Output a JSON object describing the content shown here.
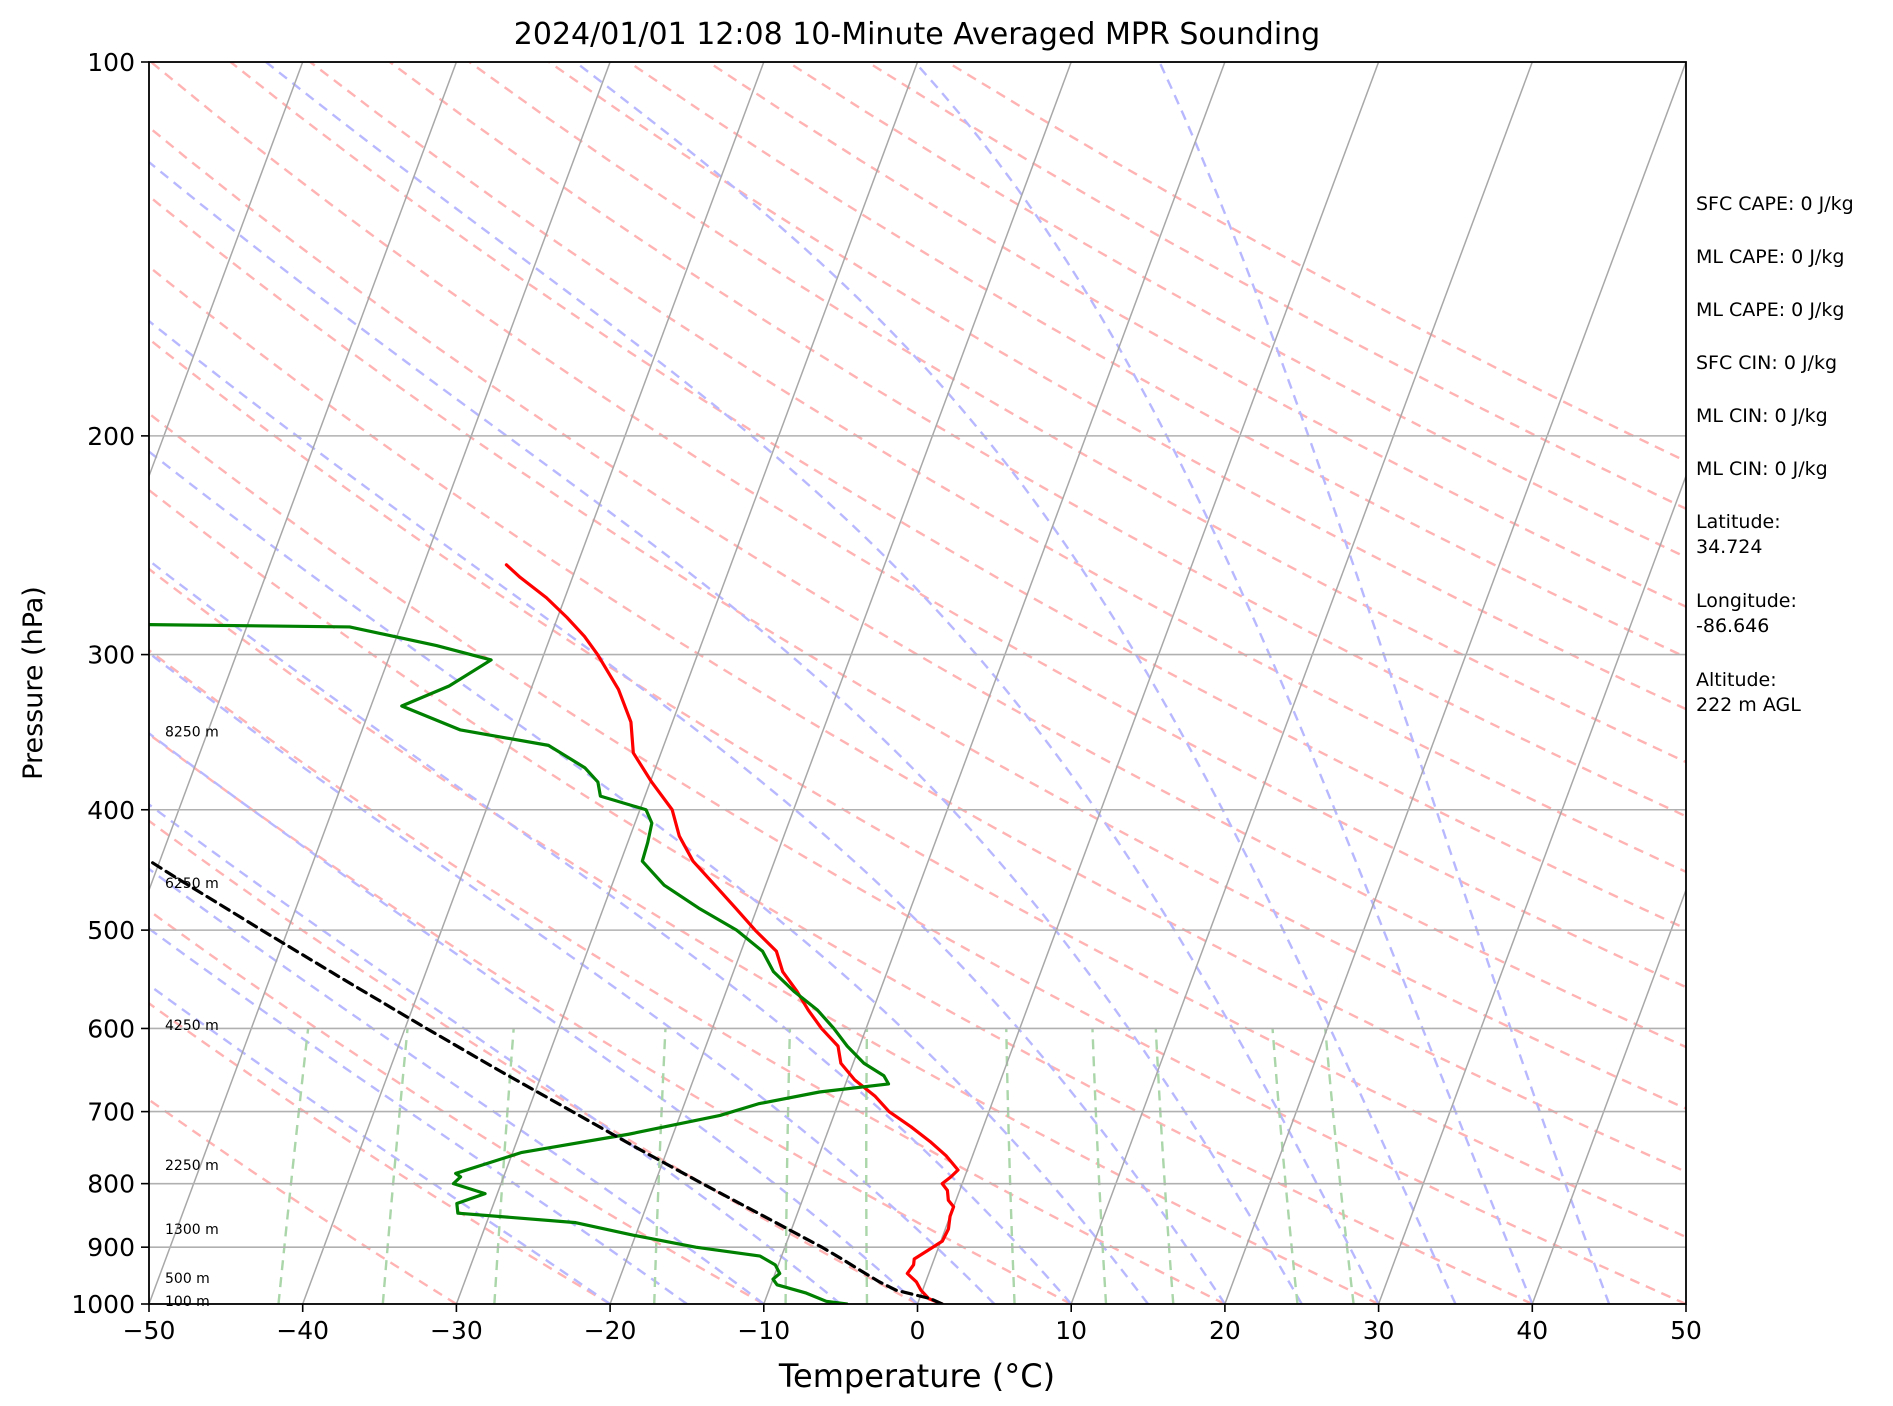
{
  "chart_data": {
    "type": "line",
    "title": "2024/01/01 12:08 10-Minute Averaged MPR Sounding",
    "xlabel": "Temperature (°C)",
    "ylabel": "Pressure (hPa)",
    "xlim": [
      -50,
      50
    ],
    "ylim": [
      1000,
      100
    ],
    "y_scale": "log",
    "grid": "on",
    "x_ticks": [
      "−50",
      "−40",
      "−30",
      "−20",
      "−10",
      "0",
      "10",
      "20",
      "30",
      "40",
      "50"
    ],
    "y_ticks": [
      "100",
      "200",
      "300",
      "400",
      "500",
      "600",
      "700",
      "800",
      "900",
      "1000"
    ],
    "colors": {
      "temperature": "#ff0000",
      "dewpoint": "#008000",
      "parcel": "#000000",
      "isotherm": "#a8a8a8",
      "dry_adiabat": "#ffb3b3",
      "moist_adiabat": "#b8b8ff",
      "mixing_ratio": "#aad6aa"
    },
    "series": [
      {
        "key": "temperature",
        "points": [
          {
            "p": 1000,
            "t": 1.6
          },
          {
            "p": 990,
            "t": 0.6
          },
          {
            "p": 975,
            "t": -0.1
          },
          {
            "p": 960,
            "t": -0.6
          },
          {
            "p": 945,
            "t": -1.4
          },
          {
            "p": 930,
            "t": -1.2
          },
          {
            "p": 920,
            "t": -1.3
          },
          {
            "p": 905,
            "t": -0.6
          },
          {
            "p": 890,
            "t": 0.1
          },
          {
            "p": 870,
            "t": 0.2
          },
          {
            "p": 850,
            "t": 0.0
          },
          {
            "p": 835,
            "t": 0.0
          },
          {
            "p": 825,
            "t": -0.5
          },
          {
            "p": 810,
            "t": -0.8
          },
          {
            "p": 800,
            "t": -1.3
          },
          {
            "p": 790,
            "t": -0.9
          },
          {
            "p": 780,
            "t": -0.6
          },
          {
            "p": 760,
            "t": -1.7
          },
          {
            "p": 740,
            "t": -3.1
          },
          {
            "p": 720,
            "t": -4.7
          },
          {
            "p": 700,
            "t": -6.5
          },
          {
            "p": 680,
            "t": -7.8
          },
          {
            "p": 660,
            "t": -9.5
          },
          {
            "p": 640,
            "t": -10.8
          },
          {
            "p": 620,
            "t": -11.4
          },
          {
            "p": 600,
            "t": -12.9
          },
          {
            "p": 580,
            "t": -14.2
          },
          {
            "p": 560,
            "t": -15.4
          },
          {
            "p": 540,
            "t": -16.8
          },
          {
            "p": 520,
            "t": -17.7
          },
          {
            "p": 500,
            "t": -19.6
          },
          {
            "p": 480,
            "t": -21.4
          },
          {
            "p": 460,
            "t": -23.3
          },
          {
            "p": 440,
            "t": -25.3
          },
          {
            "p": 420,
            "t": -26.8
          },
          {
            "p": 400,
            "t": -27.9
          },
          {
            "p": 380,
            "t": -29.9
          },
          {
            "p": 360,
            "t": -31.8
          },
          {
            "p": 340,
            "t": -32.7
          },
          {
            "p": 320,
            "t": -34.3
          },
          {
            "p": 300,
            "t": -36.5
          },
          {
            "p": 290,
            "t": -37.8
          },
          {
            "p": 280,
            "t": -39.4
          },
          {
            "p": 270,
            "t": -41.2
          },
          {
            "p": 260,
            "t": -43.4
          },
          {
            "p": 254,
            "t": -44.6
          }
        ]
      },
      {
        "key": "dewpoint",
        "points": [
          {
            "p": 1000,
            "t": -4.6
          },
          {
            "p": 995,
            "t": -6.0
          },
          {
            "p": 980,
            "t": -7.5
          },
          {
            "p": 965,
            "t": -9.6
          },
          {
            "p": 955,
            "t": -10.0
          },
          {
            "p": 945,
            "t": -9.7
          },
          {
            "p": 930,
            "t": -10.2
          },
          {
            "p": 915,
            "t": -11.4
          },
          {
            "p": 900,
            "t": -15.8
          },
          {
            "p": 880,
            "t": -20.2
          },
          {
            "p": 860,
            "t": -24.2
          },
          {
            "p": 845,
            "t": -32.1
          },
          {
            "p": 830,
            "t": -32.4
          },
          {
            "p": 815,
            "t": -30.8
          },
          {
            "p": 800,
            "t": -33.1
          },
          {
            "p": 790,
            "t": -32.8
          },
          {
            "p": 785,
            "t": -33.2
          },
          {
            "p": 755,
            "t": -29.4
          },
          {
            "p": 730,
            "t": -22.9
          },
          {
            "p": 705,
            "t": -17.4
          },
          {
            "p": 690,
            "t": -15.2
          },
          {
            "p": 675,
            "t": -11.5
          },
          {
            "p": 665,
            "t": -7.2
          },
          {
            "p": 655,
            "t": -7.7
          },
          {
            "p": 640,
            "t": -9.3
          },
          {
            "p": 620,
            "t": -10.8
          },
          {
            "p": 600,
            "t": -12.1
          },
          {
            "p": 580,
            "t": -13.6
          },
          {
            "p": 560,
            "t": -15.6
          },
          {
            "p": 540,
            "t": -17.4
          },
          {
            "p": 520,
            "t": -18.6
          },
          {
            "p": 500,
            "t": -20.8
          },
          {
            "p": 480,
            "t": -23.8
          },
          {
            "p": 460,
            "t": -26.6
          },
          {
            "p": 440,
            "t": -28.6
          },
          {
            "p": 425,
            "t": -28.7
          },
          {
            "p": 410,
            "t": -28.9
          },
          {
            "p": 400,
            "t": -29.6
          },
          {
            "p": 390,
            "t": -32.9
          },
          {
            "p": 380,
            "t": -33.4
          },
          {
            "p": 370,
            "t": -34.6
          },
          {
            "p": 355,
            "t": -37.5
          },
          {
            "p": 345,
            "t": -43.6
          },
          {
            "p": 330,
            "t": -48.0
          },
          {
            "p": 318,
            "t": -45.4
          },
          {
            "p": 303,
            "t": -43.3
          },
          {
            "p": 295,
            "t": -47.2
          },
          {
            "p": 285,
            "t": -53.3
          },
          {
            "p": 283,
            "t": -75.0
          }
        ]
      },
      {
        "key": "parcel",
        "points": [
          {
            "p": 1000,
            "t": 1.6
          },
          {
            "p": 990,
            "t": 0.7
          },
          {
            "p": 975,
            "t": -1.7
          },
          {
            "p": 960,
            "t": -3.0
          },
          {
            "p": 940,
            "t": -4.5
          },
          {
            "p": 920,
            "t": -6.0
          },
          {
            "p": 900,
            "t": -7.6
          },
          {
            "p": 850,
            "t": -12.1
          },
          {
            "p": 800,
            "t": -16.9
          },
          {
            "p": 750,
            "t": -21.9
          },
          {
            "p": 700,
            "t": -27.1
          },
          {
            "p": 650,
            "t": -32.7
          },
          {
            "p": 600,
            "t": -38.6
          },
          {
            "p": 550,
            "t": -44.9
          },
          {
            "p": 500,
            "t": -51.7
          },
          {
            "p": 450,
            "t": -59.1
          },
          {
            "p": 400,
            "t": -67.1
          },
          {
            "p": 350,
            "t": -76.0
          },
          {
            "p": 300,
            "t": -86.0
          },
          {
            "p": 293,
            "t": -87.5
          }
        ]
      }
    ],
    "height_labels": [
      {
        "text": "8250 m",
        "p": 346
      },
      {
        "text": "6250 m",
        "p": 458
      },
      {
        "text": "4250 m",
        "p": 596
      },
      {
        "text": "2250 m",
        "p": 773
      },
      {
        "text": "1300 m",
        "p": 870
      },
      {
        "text": "500 m",
        "p": 953
      },
      {
        "text": "100 m",
        "p": 994
      }
    ],
    "side_text": [
      [
        "SFC CAPE: 0 J/kg"
      ],
      [
        "ML CAPE: 0 J/kg"
      ],
      [
        "ML CAPE: 0 J/kg"
      ],
      [
        "SFC CIN: 0 J/kg"
      ],
      [
        "ML CIN: 0 J/kg"
      ],
      [
        "ML CIN: 0 J/kg"
      ],
      [
        "Latitude:",
        "34.724"
      ],
      [
        "Longitude:",
        "-86.646"
      ],
      [
        "Altitude:",
        "222 m AGL"
      ]
    ]
  }
}
